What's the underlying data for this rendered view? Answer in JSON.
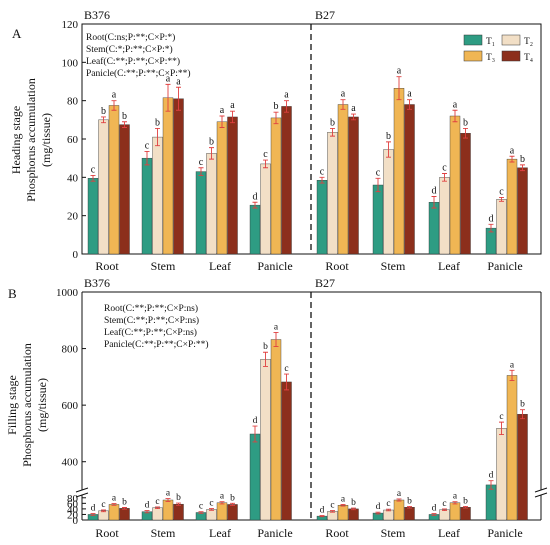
{
  "colors": {
    "T1": "#2e9c83",
    "T2": "#f2dfc6",
    "T3": "#f0b654",
    "T4": "#8c2f1c",
    "error": "#e04040"
  },
  "chart_data": [
    {
      "type": "bar",
      "panel_letter": "A",
      "ylabel_line1": "Heading stage",
      "ylabel_line2": "Phosphorus accumulation",
      "ylabel_line3": "(mg/tissue)",
      "ylim": [
        0,
        120
      ],
      "yticks": [
        0,
        20,
        40,
        60,
        80,
        100,
        120
      ],
      "legend": [
        "T₁",
        "T₂",
        "T₃",
        "T₄"
      ],
      "legend_position": "top-right",
      "groups": [
        {
          "name": "B376",
          "categories": [
            "Root",
            "Stem",
            "Leaf",
            "Panicle"
          ],
          "series": [
            {
              "name": "T₁",
              "values": [
                39.5,
                50,
                43,
                25.5
              ],
              "errors": [
                1.5,
                3.5,
                2,
                1.5
              ],
              "letters": [
                "c",
                "c",
                "c",
                "d"
              ]
            },
            {
              "name": "T₂",
              "values": [
                70,
                61,
                52.5,
                47
              ],
              "errors": [
                1.5,
                4.5,
                3,
                2
              ],
              "letters": [
                "b",
                "b",
                "b",
                "c"
              ]
            },
            {
              "name": "T₃",
              "values": [
                77.5,
                81.5,
                69,
                71
              ],
              "errors": [
                2.5,
                7,
                3,
                3
              ],
              "letters": [
                "a",
                "a",
                "a",
                "b"
              ]
            },
            {
              "name": "T₄",
              "values": [
                67.5,
                81,
                71.5,
                77
              ],
              "errors": [
                1.5,
                6,
                3,
                3
              ],
              "letters": [
                "b",
                "a",
                "a",
                "a"
              ]
            }
          ],
          "annotations": [
            "Root(C:ns;P:**;C×P:*)",
            "Stem(C:*;P:**;C×P:*)",
            "Leaf(C:**;P:**;C×P:**)",
            "Panicle(C:**;P:**;C×P:**)"
          ]
        },
        {
          "name": "B27",
          "categories": [
            "Root",
            "Stem",
            "Leaf",
            "Panicle"
          ],
          "series": [
            {
              "name": "T₁",
              "values": [
                38.5,
                36,
                27,
                13.5
              ],
              "errors": [
                1.5,
                3.5,
                3,
                2
              ],
              "letters": [
                "c",
                "c",
                "d",
                "d"
              ]
            },
            {
              "name": "T₂",
              "values": [
                63.5,
                54.5,
                40,
                28.5
              ],
              "errors": [
                2,
                4,
                2,
                1
              ],
              "letters": [
                "b",
                "b",
                "c",
                "c"
              ]
            },
            {
              "name": "T₃",
              "values": [
                78,
                86.5,
                72,
                49.5
              ],
              "errors": [
                2.5,
                6,
                3,
                1.5
              ],
              "letters": [
                "a",
                "a",
                "a",
                "a"
              ]
            },
            {
              "name": "T₄",
              "values": [
                71.5,
                78,
                63,
                45
              ],
              "errors": [
                1.5,
                2.5,
                2.5,
                1.5
              ],
              "letters": [
                "a",
                "a",
                "b",
                "b"
              ]
            }
          ]
        }
      ]
    },
    {
      "type": "bar",
      "panel_letter": "B",
      "ylabel_line1": "Filling stage",
      "ylabel_line2": "Phosphorus accumulation",
      "ylabel_line3": "(mg/tissue)",
      "axis_break": {
        "lower": [
          0,
          90
        ],
        "upper": [
          300,
          1000
        ]
      },
      "yticks_lower": [
        0,
        20,
        40,
        60,
        80
      ],
      "yticks_upper": [
        400,
        600,
        800,
        1000
      ],
      "groups": [
        {
          "name": "B376",
          "categories": [
            "Root",
            "Stem",
            "Leaf",
            "Panicle"
          ],
          "series": [
            {
              "name": "T₁",
              "values": [
                20,
                30,
                27,
                498
              ],
              "errors": [
                3,
                4,
                3,
                28
              ],
              "letters": [
                "d",
                "d",
                "c",
                "d"
              ]
            },
            {
              "name": "T₂",
              "values": [
                33,
                44,
                38,
                762
              ],
              "errors": [
                3,
                3,
                3,
                25
              ],
              "letters": [
                "c",
                "c",
                "c",
                "b"
              ]
            },
            {
              "name": "T₃",
              "values": [
                56,
                72,
                62,
                832
              ],
              "errors": [
                3,
                5,
                4,
                25
              ],
              "letters": [
                "a",
                "a",
                "a",
                "a"
              ]
            },
            {
              "name": "T₄",
              "values": [
                42,
                57,
                56,
                682
              ],
              "errors": [
                3,
                4,
                4,
                28
              ],
              "letters": [
                "b",
                "b",
                "b",
                "c"
              ]
            }
          ],
          "annotations": [
            "Root(C:**;P:**;C×P:ns)",
            "Stem(C:**;P:**;C×P:ns)",
            "Leaf(C:**;P:**;C×P:ns)",
            "Panicle(C:**;P:**;C×P:**)"
          ]
        },
        {
          "name": "B27",
          "categories": [
            "Root",
            "Stem",
            "Leaf",
            "Panicle"
          ],
          "series": [
            {
              "name": "T₁",
              "values": [
                14,
                25,
                20,
                318
              ],
              "errors": [
                2,
                3,
                3,
                15
              ],
              "letters": [
                "d",
                "d",
                "d",
                "d"
              ]
            },
            {
              "name": "T₂",
              "values": [
                31,
                36,
                37,
                518
              ],
              "errors": [
                3,
                3,
                3,
                22
              ],
              "letters": [
                "c",
                "c",
                "c",
                "c"
              ]
            },
            {
              "name": "T₃",
              "values": [
                53,
                72,
                62,
                705
              ],
              "errors": [
                3,
                4,
                4,
                18
              ],
              "letters": [
                "a",
                "a",
                "a",
                "a"
              ]
            },
            {
              "name": "T₄",
              "values": [
                40,
                46,
                46,
                568
              ],
              "errors": [
                3,
                3,
                3,
                16
              ],
              "letters": [
                "b",
                "b",
                "b",
                "b"
              ]
            }
          ]
        }
      ]
    }
  ]
}
